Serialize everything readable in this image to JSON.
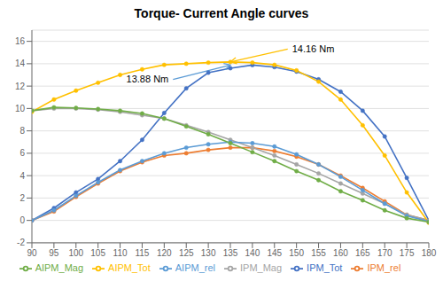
{
  "chart_data": {
    "type": "line",
    "title": "Torque- Current Angle curves",
    "x": [
      90,
      95,
      100,
      105,
      110,
      115,
      120,
      125,
      130,
      135,
      140,
      145,
      150,
      155,
      160,
      165,
      170,
      175,
      180
    ],
    "series": [
      {
        "name": "IPM_Tot",
        "color": "#4472C4",
        "values": [
          0.0,
          1.1,
          2.5,
          3.7,
          5.3,
          7.2,
          9.6,
          11.8,
          13.2,
          13.6,
          13.88,
          13.7,
          13.3,
          12.6,
          11.5,
          9.8,
          7.5,
          3.8,
          0.0
        ]
      },
      {
        "name": "IPM_rel",
        "color": "#ED7D31",
        "values": [
          0.0,
          0.8,
          2.1,
          3.3,
          4.4,
          5.2,
          5.8,
          6.0,
          6.3,
          6.5,
          6.5,
          6.2,
          5.7,
          5.0,
          4.0,
          2.9,
          1.7,
          0.5,
          0.0
        ]
      },
      {
        "name": "IPM_Mag",
        "color": "#A5A5A5",
        "values": [
          9.8,
          10.0,
          10.0,
          9.9,
          9.7,
          9.4,
          9.1,
          8.5,
          7.9,
          7.2,
          6.5,
          5.8,
          5.0,
          4.2,
          3.3,
          2.4,
          1.5,
          0.5,
          0.0
        ]
      },
      {
        "name": "AIPM_Tot",
        "color": "#FFC000",
        "values": [
          9.7,
          10.8,
          11.6,
          12.3,
          13.0,
          13.5,
          13.9,
          14.0,
          14.1,
          14.16,
          14.1,
          13.9,
          13.4,
          12.4,
          10.8,
          8.5,
          5.8,
          2.5,
          -0.2
        ]
      },
      {
        "name": "AIPM_rel",
        "color": "#5B9BD5",
        "values": [
          0.0,
          0.9,
          2.2,
          3.4,
          4.5,
          5.3,
          6.0,
          6.5,
          6.8,
          7.0,
          6.9,
          6.6,
          5.9,
          5.0,
          3.9,
          2.7,
          1.5,
          0.4,
          -0.1
        ]
      },
      {
        "name": "AIPM_Mag",
        "color": "#70AD47",
        "values": [
          9.8,
          10.1,
          10.05,
          9.95,
          9.8,
          9.55,
          9.1,
          8.4,
          7.7,
          6.9,
          6.1,
          5.3,
          4.4,
          3.6,
          2.6,
          1.8,
          0.9,
          0.2,
          -0.15
        ]
      }
    ],
    "annotations": [
      {
        "text": "14.16 Nm",
        "x": 135,
        "y": 14.16,
        "text_x": 148,
        "text_y": 15.3,
        "color": "#FFC000"
      },
      {
        "text": "13.88 Nm",
        "x": 135,
        "y": 13.88,
        "text_x": 122,
        "text_y": 12.6,
        "color": "#5B9BD5"
      }
    ],
    "xlim": [
      90,
      180
    ],
    "xticks": [
      90,
      95,
      100,
      105,
      110,
      115,
      120,
      125,
      130,
      135,
      140,
      145,
      150,
      155,
      160,
      165,
      170,
      175,
      180
    ],
    "ylim": [
      -2,
      17
    ],
    "yticks": [
      -2,
      0,
      2,
      4,
      6,
      8,
      10,
      12,
      14,
      16
    ],
    "grid": true,
    "legend": "bottom",
    "marker": "circle"
  }
}
